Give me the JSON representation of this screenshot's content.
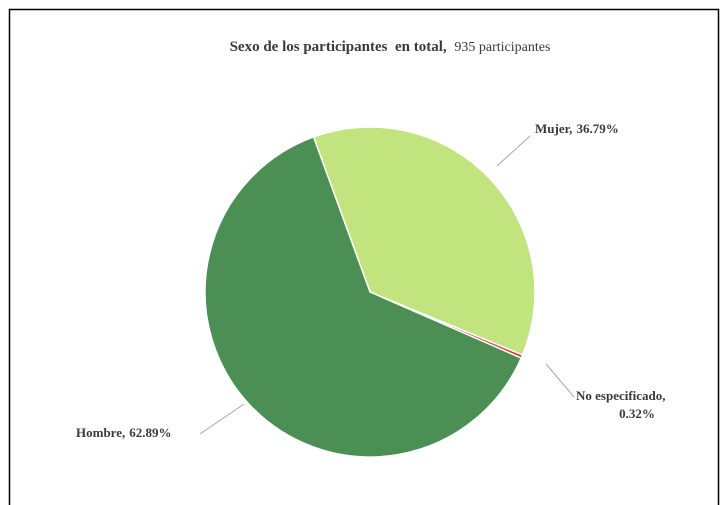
{
  "chart_data": {
    "type": "pie",
    "title": "Sexo de los participantes  en total,",
    "subtitle": "935 participantes",
    "categories": [
      "Mujer,",
      "No especificado,",
      "Hombre,"
    ],
    "values": [
      36.79,
      0.32,
      62.89
    ],
    "value_labels": [
      "36.79%",
      "0.32%",
      "62.89%"
    ],
    "colors": [
      "#c2e47e",
      "#e0303a",
      "#4b8f55"
    ]
  }
}
